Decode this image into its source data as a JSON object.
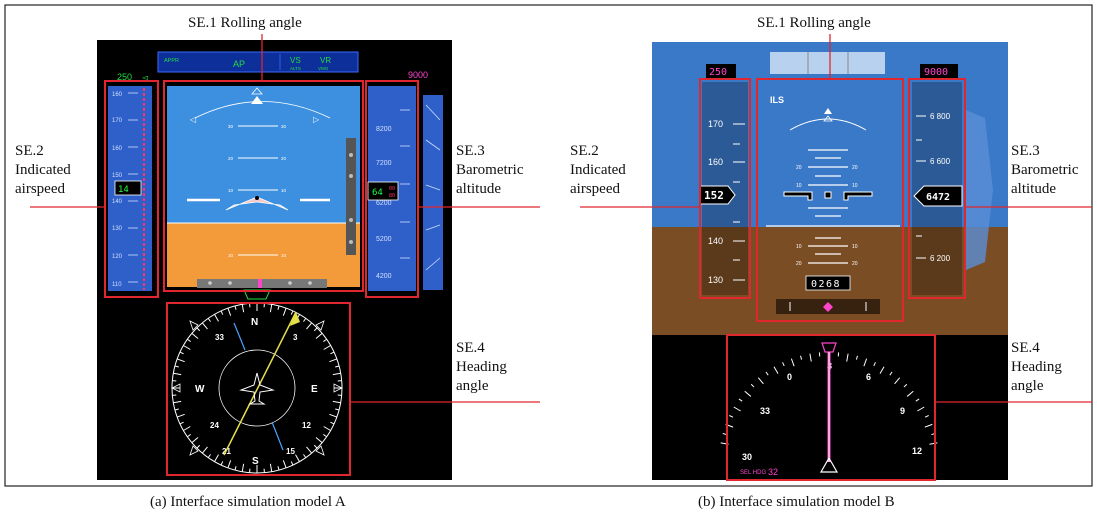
{
  "panel_a": {
    "callouts": {
      "rolling": "SE.1 Rolling angle",
      "airspeed_1": "SE.2",
      "airspeed_2": "Indicated",
      "airspeed_3": "airspeed",
      "altitude_1": "SE.3",
      "altitude_2": "Barometric",
      "altitude_3": "altitude",
      "heading_1": "SE.4",
      "heading_2": "Heading",
      "heading_3": "angle"
    },
    "caption": "(a) Interface simulation model A",
    "display": {
      "fma_appr": "APPR",
      "fma_ap": "AP",
      "fma_vs": "VS",
      "fma_vr": "VR",
      "fma_alts": "ALTS",
      "fma_vmo": "VMO",
      "speed_target": "250",
      "alt_target": "9000",
      "speed_ticks": [
        "160",
        "170",
        "160",
        "150",
        "140",
        "130",
        "120",
        "110"
      ],
      "speed_current": "14",
      "alt_ticks": [
        "8200",
        "7200",
        "6200",
        "5200",
        "4200"
      ],
      "alt_current": "64",
      "pitch_labels": [
        "30",
        "20",
        "10",
        "10",
        "20"
      ],
      "compass": [
        "N",
        "33",
        "3",
        "W",
        "E",
        "24",
        "12",
        "21",
        "15",
        "S"
      ]
    }
  },
  "panel_b": {
    "callouts": {
      "rolling": "SE.1 Rolling angle",
      "airspeed_1": "SE.2",
      "airspeed_2": "Indicated",
      "airspeed_3": "airspeed",
      "altitude_1": "SE.3",
      "altitude_2": "Barometric",
      "altitude_3": "altitude",
      "heading_1": "SE.4",
      "heading_2": "Heading",
      "heading_3": "angle"
    },
    "caption": "(b) Interface simulation model B",
    "display": {
      "speed_target": "250",
      "alt_target": "9000",
      "fma_mode": "ILS",
      "speed_ticks": [
        "170",
        "160",
        "140",
        "130"
      ],
      "speed_current": "152",
      "alt_ticks": [
        "6 800",
        "6 600",
        "6 200"
      ],
      "alt_current": "6472",
      "radio_alt": "0268",
      "pitch_labels": [
        "20",
        "10",
        "10",
        "20"
      ],
      "compass": [
        "3",
        "6",
        "0",
        "9",
        "33",
        "12",
        "30"
      ],
      "sel_hdg_label": "SEL HDG",
      "sel_hdg_value": "32"
    }
  },
  "colors": {
    "sky": "#3d8fe0",
    "ground_a": "#f39a3a",
    "ground_b": "#8b5a2b",
    "highlight": "#e0262e",
    "tape": "#2f5fc8"
  }
}
